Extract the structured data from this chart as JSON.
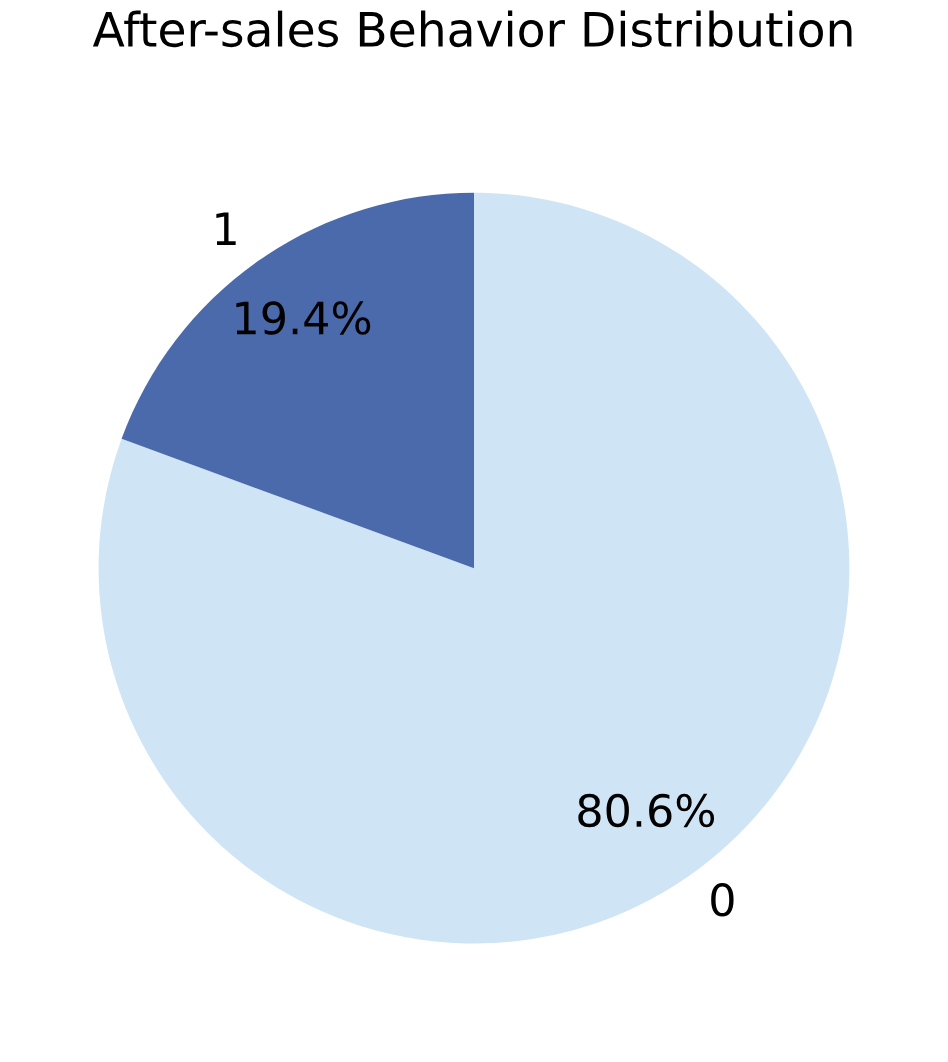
{
  "chart_data": {
    "type": "pie",
    "title": "After-sales Behavior Distribution",
    "categories": [
      "0",
      "1"
    ],
    "values": [
      80.6,
      19.4
    ],
    "value_labels": [
      "80.6%",
      "19.4%"
    ],
    "colors": [
      "#cfe4f4",
      "#4a6aab"
    ]
  }
}
